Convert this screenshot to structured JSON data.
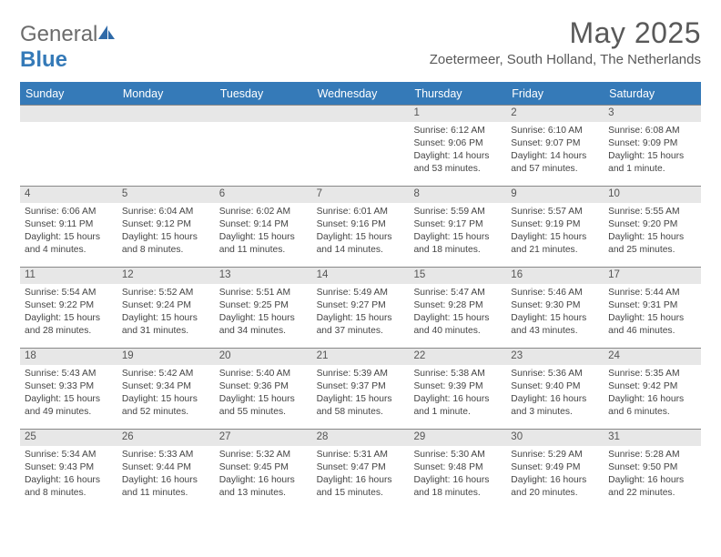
{
  "logo": {
    "text1": "General",
    "text2": "Blue"
  },
  "title": "May 2025",
  "location": "Zoetermeer, South Holland, The Netherlands",
  "weekdays": [
    "Sunday",
    "Monday",
    "Tuesday",
    "Wednesday",
    "Thursday",
    "Friday",
    "Saturday"
  ],
  "colors": {
    "accent": "#357ab8",
    "band": "#e7e7e7",
    "text_muted": "#595959"
  },
  "weeks": [
    [
      {
        "n": "",
        "sr": "",
        "ss": "",
        "dl": ""
      },
      {
        "n": "",
        "sr": "",
        "ss": "",
        "dl": ""
      },
      {
        "n": "",
        "sr": "",
        "ss": "",
        "dl": ""
      },
      {
        "n": "",
        "sr": "",
        "ss": "",
        "dl": ""
      },
      {
        "n": "1",
        "sr": "Sunrise: 6:12 AM",
        "ss": "Sunset: 9:06 PM",
        "dl": "Daylight: 14 hours and 53 minutes."
      },
      {
        "n": "2",
        "sr": "Sunrise: 6:10 AM",
        "ss": "Sunset: 9:07 PM",
        "dl": "Daylight: 14 hours and 57 minutes."
      },
      {
        "n": "3",
        "sr": "Sunrise: 6:08 AM",
        "ss": "Sunset: 9:09 PM",
        "dl": "Daylight: 15 hours and 1 minute."
      }
    ],
    [
      {
        "n": "4",
        "sr": "Sunrise: 6:06 AM",
        "ss": "Sunset: 9:11 PM",
        "dl": "Daylight: 15 hours and 4 minutes."
      },
      {
        "n": "5",
        "sr": "Sunrise: 6:04 AM",
        "ss": "Sunset: 9:12 PM",
        "dl": "Daylight: 15 hours and 8 minutes."
      },
      {
        "n": "6",
        "sr": "Sunrise: 6:02 AM",
        "ss": "Sunset: 9:14 PM",
        "dl": "Daylight: 15 hours and 11 minutes."
      },
      {
        "n": "7",
        "sr": "Sunrise: 6:01 AM",
        "ss": "Sunset: 9:16 PM",
        "dl": "Daylight: 15 hours and 14 minutes."
      },
      {
        "n": "8",
        "sr": "Sunrise: 5:59 AM",
        "ss": "Sunset: 9:17 PM",
        "dl": "Daylight: 15 hours and 18 minutes."
      },
      {
        "n": "9",
        "sr": "Sunrise: 5:57 AM",
        "ss": "Sunset: 9:19 PM",
        "dl": "Daylight: 15 hours and 21 minutes."
      },
      {
        "n": "10",
        "sr": "Sunrise: 5:55 AM",
        "ss": "Sunset: 9:20 PM",
        "dl": "Daylight: 15 hours and 25 minutes."
      }
    ],
    [
      {
        "n": "11",
        "sr": "Sunrise: 5:54 AM",
        "ss": "Sunset: 9:22 PM",
        "dl": "Daylight: 15 hours and 28 minutes."
      },
      {
        "n": "12",
        "sr": "Sunrise: 5:52 AM",
        "ss": "Sunset: 9:24 PM",
        "dl": "Daylight: 15 hours and 31 minutes."
      },
      {
        "n": "13",
        "sr": "Sunrise: 5:51 AM",
        "ss": "Sunset: 9:25 PM",
        "dl": "Daylight: 15 hours and 34 minutes."
      },
      {
        "n": "14",
        "sr": "Sunrise: 5:49 AM",
        "ss": "Sunset: 9:27 PM",
        "dl": "Daylight: 15 hours and 37 minutes."
      },
      {
        "n": "15",
        "sr": "Sunrise: 5:47 AM",
        "ss": "Sunset: 9:28 PM",
        "dl": "Daylight: 15 hours and 40 minutes."
      },
      {
        "n": "16",
        "sr": "Sunrise: 5:46 AM",
        "ss": "Sunset: 9:30 PM",
        "dl": "Daylight: 15 hours and 43 minutes."
      },
      {
        "n": "17",
        "sr": "Sunrise: 5:44 AM",
        "ss": "Sunset: 9:31 PM",
        "dl": "Daylight: 15 hours and 46 minutes."
      }
    ],
    [
      {
        "n": "18",
        "sr": "Sunrise: 5:43 AM",
        "ss": "Sunset: 9:33 PM",
        "dl": "Daylight: 15 hours and 49 minutes."
      },
      {
        "n": "19",
        "sr": "Sunrise: 5:42 AM",
        "ss": "Sunset: 9:34 PM",
        "dl": "Daylight: 15 hours and 52 minutes."
      },
      {
        "n": "20",
        "sr": "Sunrise: 5:40 AM",
        "ss": "Sunset: 9:36 PM",
        "dl": "Daylight: 15 hours and 55 minutes."
      },
      {
        "n": "21",
        "sr": "Sunrise: 5:39 AM",
        "ss": "Sunset: 9:37 PM",
        "dl": "Daylight: 15 hours and 58 minutes."
      },
      {
        "n": "22",
        "sr": "Sunrise: 5:38 AM",
        "ss": "Sunset: 9:39 PM",
        "dl": "Daylight: 16 hours and 1 minute."
      },
      {
        "n": "23",
        "sr": "Sunrise: 5:36 AM",
        "ss": "Sunset: 9:40 PM",
        "dl": "Daylight: 16 hours and 3 minutes."
      },
      {
        "n": "24",
        "sr": "Sunrise: 5:35 AM",
        "ss": "Sunset: 9:42 PM",
        "dl": "Daylight: 16 hours and 6 minutes."
      }
    ],
    [
      {
        "n": "25",
        "sr": "Sunrise: 5:34 AM",
        "ss": "Sunset: 9:43 PM",
        "dl": "Daylight: 16 hours and 8 minutes."
      },
      {
        "n": "26",
        "sr": "Sunrise: 5:33 AM",
        "ss": "Sunset: 9:44 PM",
        "dl": "Daylight: 16 hours and 11 minutes."
      },
      {
        "n": "27",
        "sr": "Sunrise: 5:32 AM",
        "ss": "Sunset: 9:45 PM",
        "dl": "Daylight: 16 hours and 13 minutes."
      },
      {
        "n": "28",
        "sr": "Sunrise: 5:31 AM",
        "ss": "Sunset: 9:47 PM",
        "dl": "Daylight: 16 hours and 15 minutes."
      },
      {
        "n": "29",
        "sr": "Sunrise: 5:30 AM",
        "ss": "Sunset: 9:48 PM",
        "dl": "Daylight: 16 hours and 18 minutes."
      },
      {
        "n": "30",
        "sr": "Sunrise: 5:29 AM",
        "ss": "Sunset: 9:49 PM",
        "dl": "Daylight: 16 hours and 20 minutes."
      },
      {
        "n": "31",
        "sr": "Sunrise: 5:28 AM",
        "ss": "Sunset: 9:50 PM",
        "dl": "Daylight: 16 hours and 22 minutes."
      }
    ]
  ]
}
